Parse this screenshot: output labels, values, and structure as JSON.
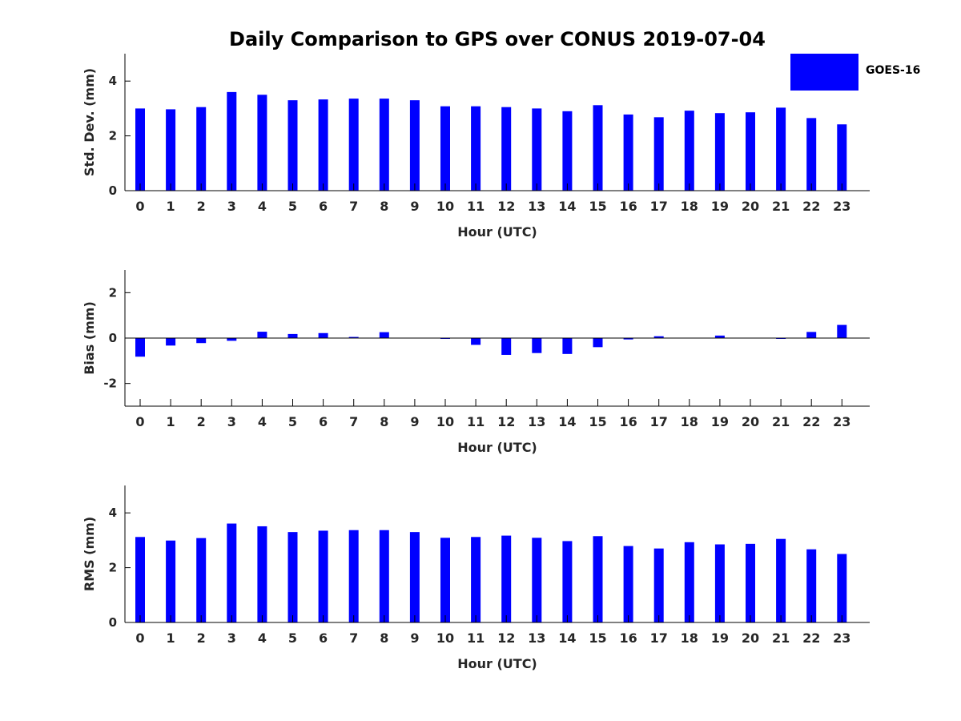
{
  "figure": {
    "title": "Daily Comparison to GPS over CONUS 2019-07-04",
    "bar_color": "#0000ff",
    "text_color": "#262626"
  },
  "legend": {
    "label": "GOES-16",
    "color": "#0000ff"
  },
  "chart_data": [
    {
      "type": "bar",
      "name": "std-dev",
      "title": "Daily Comparison to GPS over CONUS 2019-07-04",
      "xlabel": "Hour (UTC)",
      "ylabel": "Std. Dev. (mm)",
      "categories": [
        "0",
        "1",
        "2",
        "3",
        "4",
        "5",
        "6",
        "7",
        "8",
        "9",
        "10",
        "11",
        "12",
        "13",
        "14",
        "15",
        "16",
        "17",
        "18",
        "19",
        "20",
        "21",
        "22",
        "23"
      ],
      "series": [
        {
          "name": "GOES-16",
          "values": [
            3.0,
            2.97,
            3.05,
            3.6,
            3.5,
            3.3,
            3.33,
            3.36,
            3.36,
            3.3,
            3.08,
            3.08,
            3.05,
            3.0,
            2.9,
            3.12,
            2.78,
            2.68,
            2.92,
            2.83,
            2.86,
            3.03,
            2.65,
            2.42
          ]
        }
      ],
      "ylim": [
        0,
        5
      ],
      "yticks": [
        0,
        2,
        4
      ],
      "ytick_labels": [
        "0",
        "2",
        "4"
      ],
      "grid": false
    },
    {
      "type": "bar",
      "name": "bias",
      "xlabel": "Hour (UTC)",
      "ylabel": "Bias (mm)",
      "categories": [
        "0",
        "1",
        "2",
        "3",
        "4",
        "5",
        "6",
        "7",
        "8",
        "9",
        "10",
        "11",
        "12",
        "13",
        "14",
        "15",
        "16",
        "17",
        "18",
        "19",
        "20",
        "21",
        "22",
        "23"
      ],
      "series": [
        {
          "name": "GOES-16",
          "values": [
            -0.82,
            -0.33,
            -0.22,
            -0.12,
            0.28,
            0.18,
            0.22,
            0.05,
            0.26,
            0.0,
            -0.02,
            -0.3,
            -0.74,
            -0.66,
            -0.7,
            -0.4,
            -0.06,
            0.08,
            0.0,
            0.11,
            0.0,
            -0.02,
            0.27,
            0.58
          ]
        }
      ],
      "ylim": [
        -3,
        3
      ],
      "yticks": [
        -2,
        0,
        2
      ],
      "ytick_labels": [
        "-2",
        "0",
        "2"
      ],
      "zero_line": true,
      "grid": false
    },
    {
      "type": "bar",
      "name": "rms",
      "xlabel": "Hour (UTC)",
      "ylabel": "RMS (mm)",
      "categories": [
        "0",
        "1",
        "2",
        "3",
        "4",
        "5",
        "6",
        "7",
        "8",
        "9",
        "10",
        "11",
        "12",
        "13",
        "14",
        "15",
        "16",
        "17",
        "18",
        "19",
        "20",
        "21",
        "22",
        "23"
      ],
      "series": [
        {
          "name": "GOES-16",
          "values": [
            3.12,
            2.99,
            3.08,
            3.61,
            3.51,
            3.3,
            3.35,
            3.37,
            3.37,
            3.3,
            3.09,
            3.12,
            3.17,
            3.09,
            2.97,
            3.15,
            2.79,
            2.7,
            2.93,
            2.85,
            2.87,
            3.05,
            2.67,
            2.5
          ]
        }
      ],
      "ylim": [
        0,
        5
      ],
      "yticks": [
        0,
        2,
        4
      ],
      "ytick_labels": [
        "0",
        "2",
        "4"
      ],
      "grid": false
    }
  ]
}
